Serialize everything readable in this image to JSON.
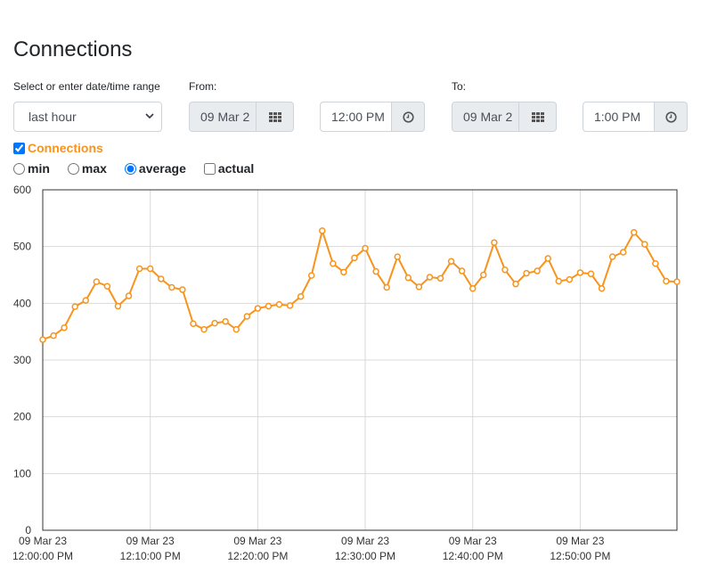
{
  "page": {
    "title": "Connections"
  },
  "range": {
    "label": "Select or enter date/time range",
    "selected": "last hour"
  },
  "from": {
    "label": "From:",
    "date": "09 Mar 2",
    "time": "12:00 PM"
  },
  "to": {
    "label": "To:",
    "date": "09 Mar 2",
    "time": "1:00 PM"
  },
  "series_toggle": {
    "label": "Connections",
    "checked": true
  },
  "mode": {
    "options": [
      {
        "label": "min",
        "checked": false
      },
      {
        "label": "max",
        "checked": false
      },
      {
        "label": "average",
        "checked": true
      },
      {
        "label": "actual",
        "checked": false
      }
    ]
  },
  "colors": {
    "line": "#f7941d",
    "grid": "#d9d9d9",
    "axis": "#333333"
  },
  "icons": {
    "calendar": "calendar-icon",
    "clock": "clock-icon"
  },
  "chart_data": {
    "type": "line",
    "ylim": [
      0,
      600
    ],
    "yticks": [
      0,
      100,
      200,
      300,
      400,
      500,
      600
    ],
    "xlim_minutes": [
      0,
      59
    ],
    "xticks": [
      {
        "date": "09 Mar 23",
        "time": "12:00:00 PM",
        "minute": 0
      },
      {
        "date": "09 Mar 23",
        "time": "12:10:00 PM",
        "minute": 10
      },
      {
        "date": "09 Mar 23",
        "time": "12:20:00 PM",
        "minute": 20
      },
      {
        "date": "09 Mar 23",
        "time": "12:30:00 PM",
        "minute": 30
      },
      {
        "date": "09 Mar 23",
        "time": "12:40:00 PM",
        "minute": 40
      },
      {
        "date": "09 Mar 23",
        "time": "12:50:00 PM",
        "minute": 50
      }
    ],
    "grid": true,
    "series": [
      {
        "name": "Connections",
        "values": [
          336,
          343,
          357,
          394,
          405,
          438,
          430,
          395,
          413,
          461,
          461,
          443,
          428,
          424,
          364,
          354,
          365,
          368,
          354,
          377,
          391,
          395,
          398,
          396,
          412,
          449,
          528,
          470,
          455,
          480,
          497,
          456,
          428,
          482,
          445,
          429,
          446,
          444,
          474,
          457,
          426,
          450,
          507,
          459,
          434,
          453,
          457,
          479,
          439,
          442,
          454,
          452,
          426,
          482,
          490,
          525,
          504,
          470,
          439,
          438
        ]
      }
    ]
  }
}
